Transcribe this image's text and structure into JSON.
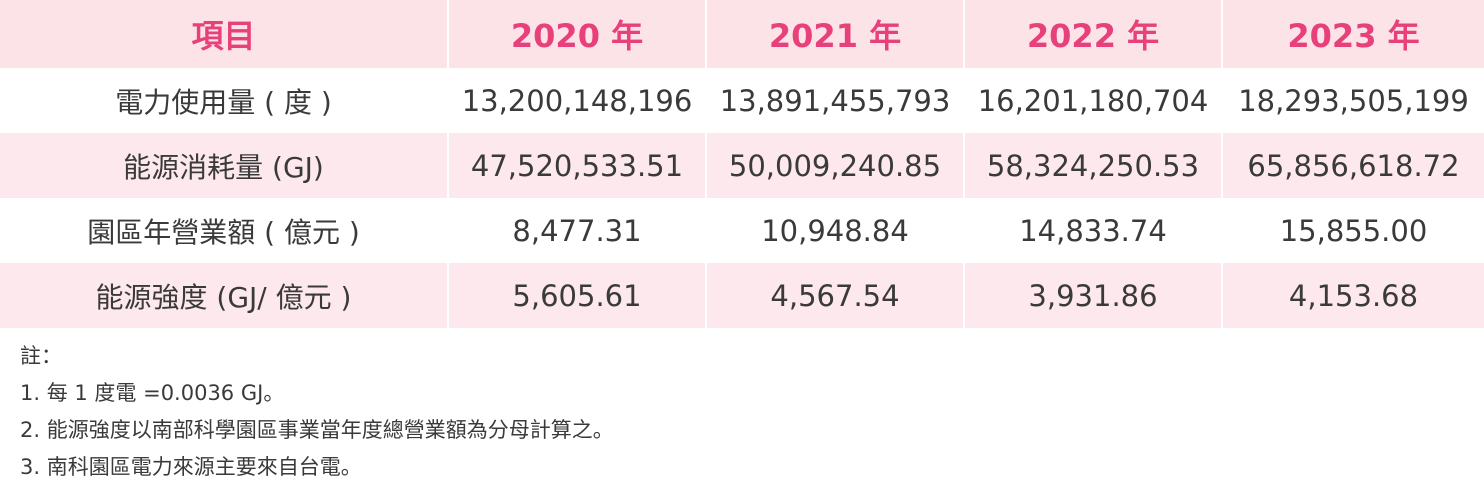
{
  "table": {
    "headers": [
      "項目",
      "2020 年",
      "2021 年",
      "2022 年",
      "2023 年"
    ],
    "rows": [
      {
        "label": "電力使用量 ( 度 )",
        "values": [
          "13,200,148,196",
          "13,891,455,793",
          "16,201,180,704",
          "18,293,505,199"
        ]
      },
      {
        "label": "能源消耗量 (GJ)",
        "values": [
          "47,520,533.51",
          "50,009,240.85",
          "58,324,250.53",
          "65,856,618.72"
        ]
      },
      {
        "label": "園區年營業額 ( 億元 )",
        "values": [
          "8,477.31",
          "10,948.84",
          "14,833.74",
          "15,855.00"
        ]
      },
      {
        "label": "能源強度 (GJ/ 億元 )",
        "values": [
          "5,605.61",
          "4,567.54",
          "3,931.86",
          "4,153.68"
        ]
      }
    ]
  },
  "notes": {
    "title": "註：",
    "items": [
      "1. 每 1 度電 =0.0036 GJ。",
      "2. 能源強度以南部科學園區事業當年度總營業額為分母計算之。",
      "3. 南科園區電力來源主要來自台電。"
    ]
  },
  "colors": {
    "header_bg": "#fce3e8",
    "header_text": "#e8407a",
    "stripe_bg": "#fde9ed",
    "body_text": "#3a3a3a"
  }
}
